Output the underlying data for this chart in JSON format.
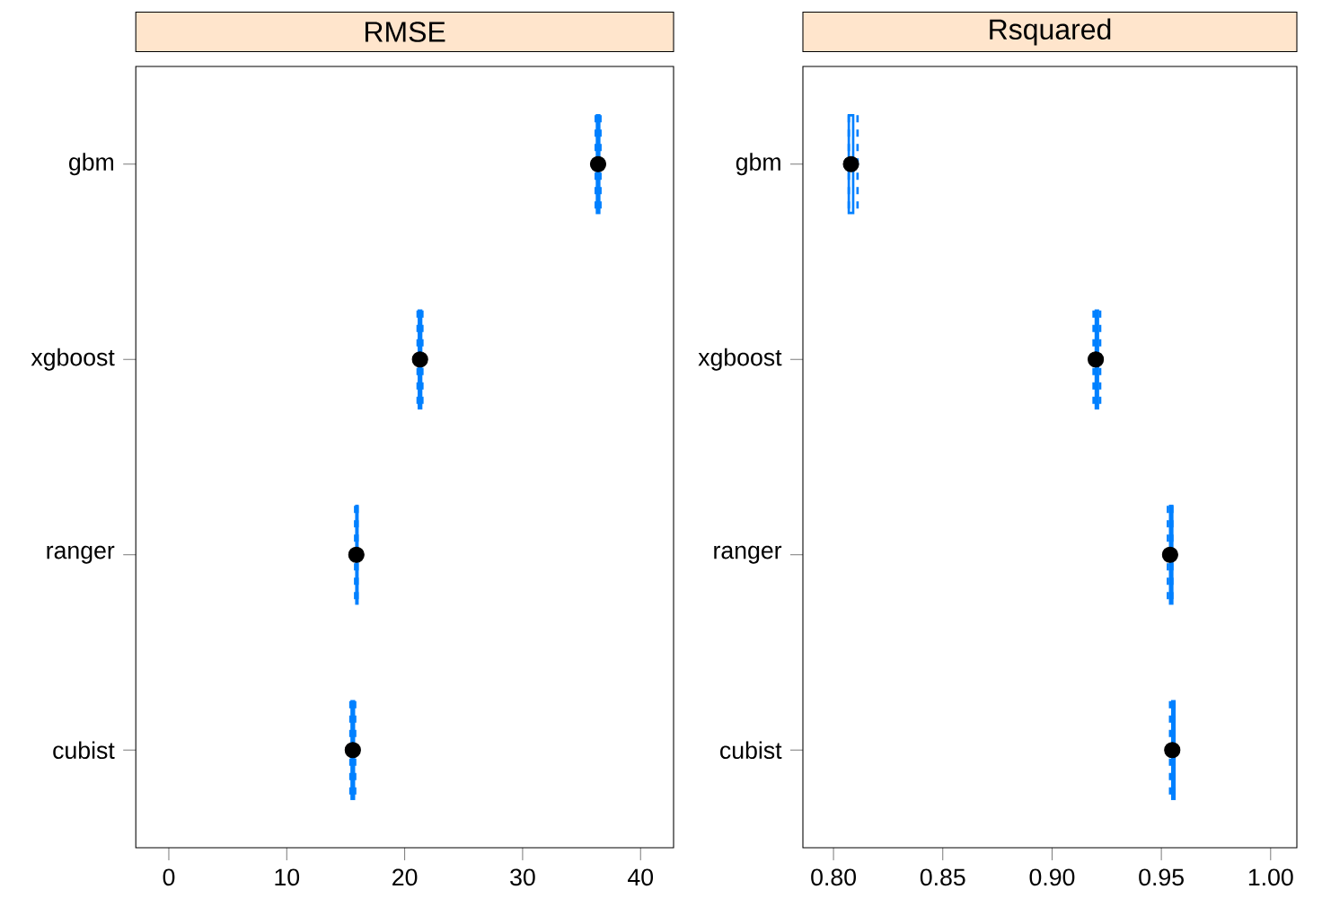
{
  "chart_data": [
    {
      "type": "box",
      "orientation": "horizontal",
      "title": "RMSE",
      "categories": [
        "gbm",
        "xgboost",
        "ranger",
        "cubist"
      ],
      "series": [
        {
          "color": "#0080ff",
          "boxes": [
            {
              "low": 36.2,
              "q1": 36.3,
              "median": 36.4,
              "q3": 36.5,
              "high": 36.6
            },
            {
              "low": 21.1,
              "q1": 21.2,
              "median": 21.3,
              "q3": 21.4,
              "high": 21.5
            },
            {
              "low": 15.8,
              "q1": 15.9,
              "median": 15.9,
              "q3": 16.0,
              "high": 16.0
            },
            {
              "low": 15.4,
              "q1": 15.5,
              "median": 15.6,
              "q3": 15.7,
              "high": 15.8
            }
          ]
        },
        {
          "type": "scatter",
          "color": "#000000",
          "marker": "circle",
          "values": [
            36.4,
            21.3,
            15.9,
            15.6
          ]
        }
      ],
      "xlim": [
        -2.8,
        42.8
      ],
      "xticks": [
        0,
        10,
        20,
        30,
        40
      ]
    },
    {
      "type": "box",
      "orientation": "horizontal",
      "title": "Rsquared",
      "categories": [
        "gbm",
        "xgboost",
        "ranger",
        "cubist"
      ],
      "series": [
        {
          "color": "#0080ff",
          "boxes": [
            {
              "low": 0.807,
              "q1": 0.807,
              "median": 0.808,
              "q3": 0.809,
              "high": 0.811
            },
            {
              "low": 0.919,
              "q1": 0.92,
              "median": 0.92,
              "q3": 0.921,
              "high": 0.922
            },
            {
              "low": 0.953,
              "q1": 0.954,
              "median": 0.954,
              "q3": 0.955,
              "high": 0.955
            },
            {
              "low": 0.954,
              "q1": 0.955,
              "median": 0.955,
              "q3": 0.956,
              "high": 0.956
            }
          ]
        },
        {
          "type": "scatter",
          "color": "#000000",
          "marker": "circle",
          "values": [
            0.808,
            0.92,
            0.954,
            0.955
          ]
        }
      ],
      "xlim": [
        0.786,
        1.012
      ],
      "xticks": [
        {
          "value": 0.8,
          "label": "0.80"
        },
        {
          "value": 0.85,
          "label": "0.85"
        },
        {
          "value": 0.9,
          "label": "0.90"
        },
        {
          "value": 0.95,
          "label": "0.95"
        },
        {
          "value": 1.0,
          "label": "1.00"
        }
      ]
    }
  ]
}
